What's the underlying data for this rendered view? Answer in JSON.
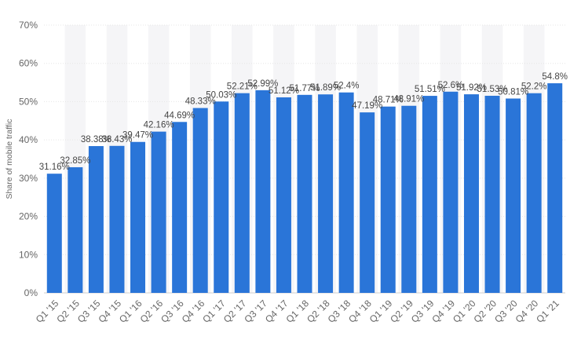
{
  "chart_data": {
    "type": "bar",
    "title": "",
    "xlabel": "",
    "ylabel": "Share of mobile traffic",
    "ylim": [
      0,
      70
    ],
    "yticks": [
      "0%",
      "10%",
      "20%",
      "30%",
      "40%",
      "50%",
      "60%",
      "70%"
    ],
    "grid": true,
    "bar_color": "#2a75d8",
    "categories": [
      "Q1 '15",
      "Q2 '15",
      "Q3 '15",
      "Q4 '15",
      "Q1 '16",
      "Q2 '16",
      "Q3 '16",
      "Q4 '16",
      "Q1 '17",
      "Q2 '17",
      "Q3 '17",
      "Q4 '17",
      "Q1 '18",
      "Q2 '18",
      "Q3 '18",
      "Q4 '18",
      "Q1 '19",
      "Q2 '19",
      "Q3 '19",
      "Q4 '19",
      "Q1 '20",
      "Q2 '20",
      "Q3 '20",
      "Q4 '20",
      "Q1 '21"
    ],
    "values": [
      31.16,
      32.85,
      38.38,
      38.43,
      39.47,
      42.16,
      44.69,
      48.33,
      50.03,
      52.21,
      52.99,
      51.12,
      51.77,
      51.89,
      52.4,
      47.19,
      48.71,
      48.91,
      51.51,
      52.6,
      51.92,
      51.53,
      50.81,
      52.2,
      54.8
    ],
    "value_labels": [
      "31.16%",
      "32.85%",
      "38.38%",
      "38.43%",
      "39.47%",
      "42.16%",
      "44.69%",
      "48.33%",
      "50.03%",
      "52.21%",
      "52.99%",
      "51.12%",
      "51.77%",
      "51.89%",
      "52.4%",
      "47.19%",
      "48.71%",
      "48.91%",
      "51.51%",
      "52.6%",
      "51.92%",
      "51.53%",
      "50.81%",
      "52.2%",
      "54.8%"
    ]
  }
}
